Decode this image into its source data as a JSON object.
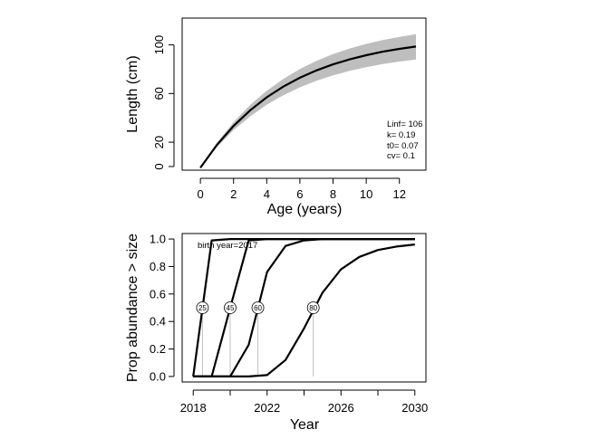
{
  "chart_data": [
    {
      "type": "line",
      "title": "",
      "xlabel": "Age (years)",
      "ylabel": "Length (cm)",
      "xlim": [
        -1.1,
        13.6
      ],
      "ylim": [
        -3,
        122
      ],
      "xticks": [
        0,
        2,
        4,
        6,
        8,
        10,
        12
      ],
      "yticks": [
        0,
        20,
        60,
        100
      ],
      "ytick_labels_rotated": true,
      "grid": false,
      "band_color": "#bebebe",
      "line_color": "#000000",
      "series": [
        {
          "name": "",
          "x": [
            0,
            1,
            2,
            3,
            4,
            5,
            6,
            7,
            8,
            9,
            10,
            11,
            12,
            13
          ],
          "y": [
            -1,
            17.8,
            33.3,
            46.2,
            56.9,
            65.7,
            73.0,
            79.0,
            84.0,
            88.1,
            91.5,
            94.4,
            96.7,
            98.6
          ],
          "y_lower": [
            -1,
            15.9,
            29.8,
            41.2,
            50.7,
            58.6,
            65.1,
            70.5,
            75.0,
            78.6,
            81.7,
            84.2,
            86.3,
            87.9
          ],
          "y_upper": [
            -1,
            19.6,
            36.5,
            50.6,
            62.3,
            72.0,
            80.1,
            86.8,
            92.4,
            97.0,
            100.8,
            103.9,
            106.6,
            108.8
          ]
        }
      ],
      "annotations": [
        "Linf= 106",
        "k= 0.19",
        "t0= 0.07",
        "cv= 0.1"
      ]
    },
    {
      "type": "line",
      "title": "",
      "xlabel": "Year",
      "ylabel": "Prop abundance > size",
      "xlim": [
        2017.4,
        2030.6
      ],
      "ylim": [
        -0.04,
        1.04
      ],
      "xticks": [
        2018,
        2022,
        2026,
        2030
      ],
      "xticks_minor": [
        2020,
        2024,
        2028
      ],
      "yticks": [
        0.0,
        0.2,
        0.4,
        0.6,
        0.8,
        1.0
      ],
      "ytick_labels": [
        "0.0",
        "0.2",
        "0.4",
        "0.6",
        "0.8",
        "1.0"
      ],
      "grid": false,
      "line_color": "#000000",
      "marker_line_color": "#bebebe",
      "annotation": "birth year=2017",
      "series": [
        {
          "name": "",
          "marker_label": "25",
          "marker_x": 2018.5,
          "x": [
            2018,
            2019,
            2020,
            2021,
            2022,
            2023,
            2024,
            2025,
            2026,
            2027,
            2028,
            2029,
            2030
          ],
          "y": [
            0.0,
            0.99,
            1.0,
            1.0,
            1.0,
            1.0,
            1.0,
            1.0,
            1.0,
            1.0,
            1.0,
            1.0,
            1.0
          ]
        },
        {
          "name": "",
          "marker_label": "45",
          "marker_x": 2020.0,
          "x": [
            2018,
            2019,
            2020,
            2021,
            2022,
            2023,
            2024,
            2025,
            2026,
            2027,
            2028,
            2029,
            2030
          ],
          "y": [
            0.0,
            0.0,
            0.5,
            0.99,
            1.0,
            1.0,
            1.0,
            1.0,
            1.0,
            1.0,
            1.0,
            1.0,
            1.0
          ]
        },
        {
          "name": "",
          "marker_label": "60",
          "marker_x": 2021.5,
          "x": [
            2018,
            2019,
            2020,
            2021,
            2022,
            2023,
            2024,
            2025,
            2026,
            2027,
            2028,
            2029,
            2030
          ],
          "y": [
            0.0,
            0.0,
            0.0,
            0.23,
            0.76,
            0.95,
            0.99,
            1.0,
            1.0,
            1.0,
            1.0,
            1.0,
            1.0
          ]
        },
        {
          "name": "",
          "marker_label": "80",
          "marker_x": 2024.5,
          "x": [
            2018,
            2019,
            2020,
            2021,
            2022,
            2023,
            2024,
            2025,
            2026,
            2027,
            2028,
            2029,
            2030
          ],
          "y": [
            0.0,
            0.0,
            0.0,
            0.0,
            0.01,
            0.12,
            0.35,
            0.61,
            0.78,
            0.87,
            0.92,
            0.945,
            0.96
          ]
        }
      ]
    }
  ]
}
